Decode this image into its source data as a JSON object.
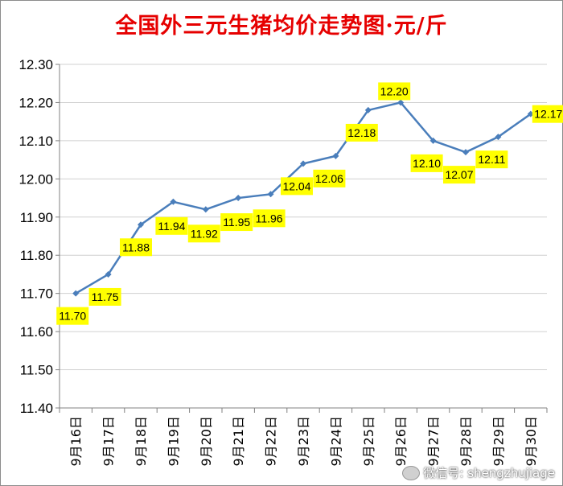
{
  "chart_data": {
    "type": "line",
    "title": "全国外三元生猪均价走势图·元/斤",
    "categories": [
      "9月16日",
      "9月17日",
      "9月18日",
      "9月19日",
      "9月20日",
      "9月21日",
      "9月22日",
      "9月23日",
      "9月24日",
      "9月25日",
      "9月26日",
      "9月27日",
      "9月28日",
      "9月29日",
      "9月30日"
    ],
    "series": [
      {
        "values": [
          11.7,
          11.75,
          11.88,
          11.94,
          11.92,
          11.95,
          11.96,
          12.04,
          12.06,
          12.18,
          12.2,
          12.1,
          12.07,
          12.11,
          12.17
        ]
      }
    ],
    "data_labels": [
      "11.70",
      "11.75",
      "11.88",
      "11.94",
      "11.92",
      "11.95",
      "11.96",
      "12.04",
      "12.06",
      "12.18",
      "12.20",
      "12.10",
      "12.07",
      "12.11",
      "12.17"
    ],
    "y_ticks": [
      "11.40",
      "11.50",
      "11.60",
      "11.70",
      "11.80",
      "11.90",
      "12.00",
      "12.10",
      "12.20",
      "12.30"
    ],
    "ylim": [
      11.4,
      12.3
    ],
    "grid": true,
    "legend": "none",
    "colors": {
      "line": "#4a7ebb",
      "title": "#e60000",
      "label_bg": "#ffff00",
      "grid": "#d0d0d0"
    }
  },
  "watermark": {
    "text": "微信号: shengzhujiage"
  }
}
